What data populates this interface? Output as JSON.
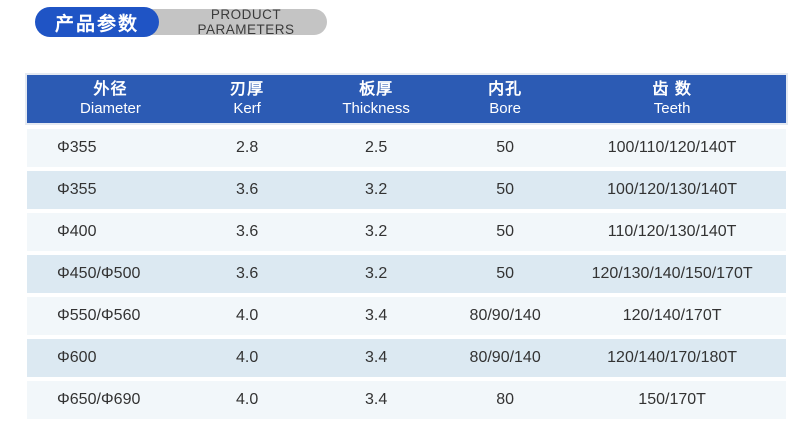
{
  "header": {
    "title_cn": "产品参数",
    "title_en": "PRODUCT PARAMETERS",
    "badge_blue_color": "#1f54c5",
    "badge_gray_color": "#c4c4c4"
  },
  "table": {
    "colors": {
      "header_bg": "#2c5bb4",
      "row_odd": "#f2f7fa",
      "row_even": "#dce9f2",
      "text": "#333333"
    },
    "columns": [
      {
        "cn": "外径",
        "en": "Diameter"
      },
      {
        "cn": "刃厚",
        "en": "Kerf"
      },
      {
        "cn": "板厚",
        "en": "Thickness"
      },
      {
        "cn": "内孔",
        "en": "Bore"
      },
      {
        "cn": "齿 数",
        "en": "Teeth"
      }
    ],
    "rows": [
      [
        "Φ355",
        "2.8",
        "2.5",
        "50",
        "100/110/120/140T"
      ],
      [
        "Φ355",
        "3.6",
        "3.2",
        "50",
        "100/120/130/140T"
      ],
      [
        "Φ400",
        "3.6",
        "3.2",
        "50",
        "110/120/130/140T"
      ],
      [
        "Φ450/Φ500",
        "3.6",
        "3.2",
        "50",
        "120/130/140/150/170T"
      ],
      [
        "Φ550/Φ560",
        "4.0",
        "3.4",
        "80/90/140",
        "120/140/170T"
      ],
      [
        "Φ600",
        "4.0",
        "3.4",
        "80/90/140",
        "120/140/170/180T"
      ],
      [
        "Φ650/Φ690",
        "4.0",
        "3.4",
        "80",
        "150/170T"
      ]
    ]
  }
}
